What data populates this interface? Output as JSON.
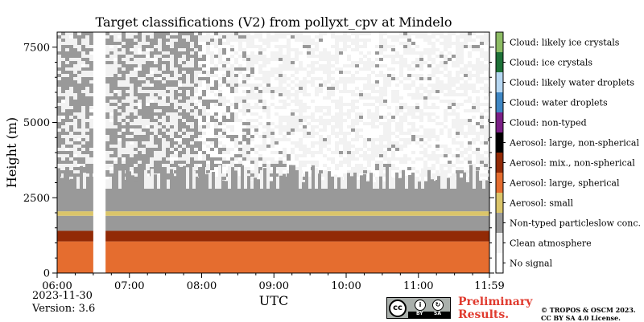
{
  "chart_data": {
    "type": "heatmap",
    "title": "Target classifications (V2) from pollyxt_cpv at Mindelo",
    "xlabel": "UTC",
    "ylabel": "Height (m)",
    "x_ticks": [
      "06:00",
      "07:00",
      "08:00",
      "09:00",
      "10:00",
      "11:00",
      "11:59"
    ],
    "x_tick_hours": [
      6,
      7,
      8,
      9,
      10,
      11,
      11.983
    ],
    "xlim_hours": [
      6,
      11.983
    ],
    "y_ticks": [
      0,
      2500,
      5000,
      7500
    ],
    "y_tick_labels": [
      "0",
      "2500",
      "5000",
      "7500"
    ],
    "ylim": [
      0,
      8000
    ],
    "grid": false,
    "legend": "colorbar-right",
    "no_signal_periods_hours": [
      [
        6.5,
        6.67
      ]
    ],
    "classes": [
      {
        "label": "No signal",
        "color": "#ffffff"
      },
      {
        "label": "Clean atmosphere",
        "color": "#f2f2f2"
      },
      {
        "label": "Non-typed particleslow conc.",
        "color": "#999999"
      },
      {
        "label": "Aerosol: small",
        "color": "#dbc56a"
      },
      {
        "label": "Aerosol: large, spherical",
        "color": "#e56d2f"
      },
      {
        "label": "Aerosol: mix., non-spherical",
        "color": "#922a06"
      },
      {
        "label": "Aerosol: large, non-spherical",
        "color": "#000000"
      },
      {
        "label": "Cloud: non-typed",
        "color": "#7b1f86"
      },
      {
        "label": "Cloud: water droplets",
        "color": "#3f87c4"
      },
      {
        "label": "Cloud: likely water droplets",
        "color": "#b6d7f2"
      },
      {
        "label": "Cloud: ice crystals",
        "color": "#1e7238"
      },
      {
        "label": "Cloud: likely ice crystals",
        "color": "#8dbc64"
      }
    ],
    "layers_m": [
      {
        "class": "Aerosol: large, spherical",
        "base": 0,
        "top": 1050
      },
      {
        "class": "Aerosol: mix., non-spherical",
        "base": 1050,
        "top": 1400
      },
      {
        "class": "Non-typed particleslow conc.",
        "base": 1400,
        "top": 1900
      },
      {
        "class": "Aerosol: small",
        "base": 1900,
        "top": 2050
      },
      {
        "class": "Non-typed particleslow conc.",
        "base": 2050,
        "top": 2800
      }
    ]
  },
  "date_label": "2023-11-30",
  "version_label": "Version: 3.6",
  "badge": {
    "cc": "cc",
    "by": "BY",
    "sa": "SA"
  },
  "preliminary": {
    "line1": "Preliminary",
    "line2": "Results."
  },
  "copyright": {
    "line1": "© TROPOS & OSCM 2023.",
    "line2": "CC BY SA 4.0 License."
  }
}
